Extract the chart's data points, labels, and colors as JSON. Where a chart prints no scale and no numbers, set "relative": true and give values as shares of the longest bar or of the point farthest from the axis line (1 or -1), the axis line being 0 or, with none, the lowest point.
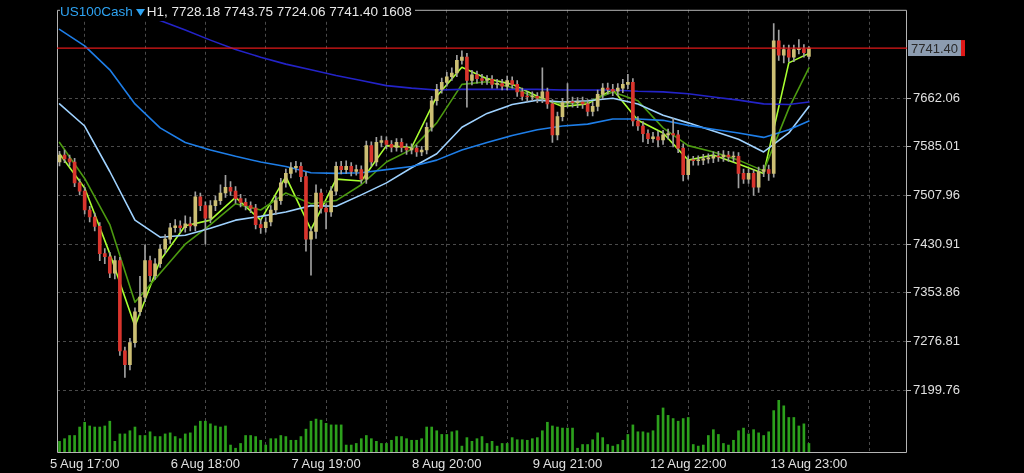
{
  "chart_data": [
    {
      "type": "candlestick",
      "title": "US100Cash",
      "subtitle": "H1, 7728.18 7743.75 7724.06 7741.40 1608",
      "tick_labels": "y",
      "categories": [
        null,
        null,
        null,
        null,
        null,
        null,
        null,
        null,
        null,
        null,
        null,
        null,
        null,
        null,
        null,
        null,
        null,
        null,
        null,
        null,
        null,
        null,
        null,
        null,
        null,
        null,
        null,
        null,
        null,
        null,
        null,
        null,
        null,
        null,
        null,
        null,
        null,
        null,
        null,
        null,
        null,
        null,
        null,
        null,
        null,
        null,
        null,
        null,
        null,
        null,
        null,
        null,
        null,
        null,
        null,
        null,
        null,
        null,
        null,
        null,
        null,
        null,
        null,
        null,
        null,
        null,
        null,
        null,
        null,
        null,
        null,
        null,
        null,
        null,
        null,
        null,
        null,
        null,
        null,
        null,
        null,
        null,
        null,
        null,
        null,
        null,
        null,
        null,
        null,
        null,
        null,
        null,
        null,
        null,
        null,
        null,
        null,
        null,
        null,
        null,
        null,
        null,
        null,
        null,
        null,
        null,
        null,
        null,
        null,
        null,
        null,
        null,
        null,
        null,
        null,
        null,
        null,
        null,
        null,
        null,
        null,
        null,
        null,
        null,
        null,
        null,
        null,
        null,
        null,
        null,
        null,
        null,
        null,
        null,
        null,
        null,
        null,
        null,
        null,
        null,
        null,
        null,
        null,
        null,
        null,
        null,
        null,
        null,
        null,
        null,
        null,
        null,
        null,
        null,
        null,
        null,
        null,
        null,
        null,
        null,
        null,
        null,
        null,
        null,
        null,
        null,
        null,
        null,
        null
      ],
      "ohlc": [
        [
          7561,
          7578,
          7555,
          7572
        ],
        [
          7572,
          7580,
          7560,
          7566
        ],
        [
          7566,
          7572,
          7555,
          7561
        ],
        [
          7561,
          7567,
          7522,
          7528
        ],
        [
          7528,
          7534,
          7509,
          7515
        ],
        [
          7515,
          7521,
          7479,
          7485
        ],
        [
          7485,
          7491,
          7466,
          7474
        ],
        [
          7474,
          7480,
          7452,
          7459
        ],
        [
          7459,
          7465,
          7405,
          7416
        ],
        [
          7416,
          7424,
          7400,
          7411
        ],
        [
          7411,
          7418,
          7378,
          7385
        ],
        [
          7385,
          7412,
          7376,
          7405
        ],
        [
          7405,
          7410,
          7255,
          7262
        ],
        [
          7262,
          7268,
          7220,
          7240
        ],
        [
          7240,
          7282,
          7232,
          7275
        ],
        [
          7275,
          7330,
          7268,
          7324
        ],
        [
          7324,
          7380,
          7318,
          7347
        ],
        [
          7347,
          7430,
          7340,
          7405
        ],
        [
          7405,
          7412,
          7372,
          7381
        ],
        [
          7381,
          7408,
          7375,
          7400
        ],
        [
          7400,
          7430,
          7394,
          7423
        ],
        [
          7423,
          7446,
          7416,
          7439
        ],
        [
          7439,
          7464,
          7432,
          7457
        ],
        [
          7457,
          7470,
          7450,
          7460
        ],
        [
          7460,
          7468,
          7450,
          7457
        ],
        [
          7457,
          7476,
          7450,
          7463
        ],
        [
          7463,
          7474,
          7452,
          7460
        ],
        [
          7460,
          7514,
          7452,
          7506
        ],
        [
          7506,
          7512,
          7484,
          7492
        ],
        [
          7492,
          7498,
          7431,
          7472
        ],
        [
          7472,
          7500,
          7465,
          7492
        ],
        [
          7492,
          7507,
          7484,
          7500
        ],
        [
          7500,
          7525,
          7494,
          7512
        ],
        [
          7512,
          7540,
          7505,
          7521
        ],
        [
          7521,
          7530,
          7508,
          7515
        ],
        [
          7515,
          7522,
          7496,
          7503
        ],
        [
          7503,
          7510,
          7490,
          7497
        ],
        [
          7497,
          7503,
          7485,
          7492
        ],
        [
          7492,
          7498,
          7481,
          7488
        ],
        [
          7488,
          7494,
          7455,
          7462
        ],
        [
          7462,
          7470,
          7448,
          7457
        ],
        [
          7457,
          7473,
          7450,
          7466
        ],
        [
          7466,
          7492,
          7460,
          7485
        ],
        [
          7485,
          7507,
          7478,
          7500
        ],
        [
          7500,
          7535,
          7494,
          7528
        ],
        [
          7528,
          7550,
          7521,
          7543
        ],
        [
          7543,
          7560,
          7536,
          7552
        ],
        [
          7552,
          7562,
          7545,
          7554
        ],
        [
          7554,
          7560,
          7530,
          7538
        ],
        [
          7538,
          7545,
          7420,
          7439
        ],
        [
          7439,
          7458,
          7382,
          7451
        ],
        [
          7451,
          7525,
          7440,
          7512
        ],
        [
          7512,
          7518,
          7480,
          7488
        ],
        [
          7488,
          7495,
          7455,
          7482
        ],
        [
          7482,
          7522,
          7475,
          7515
        ],
        [
          7515,
          7561,
          7509,
          7554
        ],
        [
          7554,
          7562,
          7542,
          7549
        ],
        [
          7549,
          7563,
          7543,
          7554
        ],
        [
          7554,
          7560,
          7539,
          7546
        ],
        [
          7546,
          7556,
          7540,
          7549
        ],
        [
          7549,
          7555,
          7527,
          7534
        ],
        [
          7534,
          7594,
          7527,
          7587
        ],
        [
          7587,
          7593,
          7554,
          7561
        ],
        [
          7561,
          7600,
          7555,
          7592
        ],
        [
          7592,
          7602,
          7585,
          7595
        ],
        [
          7595,
          7601,
          7582,
          7589
        ],
        [
          7589,
          7595,
          7577,
          7584
        ],
        [
          7584,
          7598,
          7578,
          7592
        ],
        [
          7592,
          7598,
          7577,
          7584
        ],
        [
          7584,
          7590,
          7573,
          7580
        ],
        [
          7580,
          7590,
          7574,
          7583
        ],
        [
          7583,
          7588,
          7570,
          7577
        ],
        [
          7577,
          7586,
          7571,
          7580
        ],
        [
          7580,
          7623,
          7574,
          7616
        ],
        [
          7616,
          7665,
          7610,
          7658
        ],
        [
          7658,
          7684,
          7651,
          7676
        ],
        [
          7676,
          7694,
          7670,
          7687
        ],
        [
          7687,
          7703,
          7681,
          7696
        ],
        [
          7696,
          7710,
          7690,
          7702
        ],
        [
          7702,
          7730,
          7696,
          7722
        ],
        [
          7722,
          7737,
          7716,
          7727
        ],
        [
          7727,
          7733,
          7648,
          7690
        ],
        [
          7690,
          7706,
          7683,
          7699
        ],
        [
          7699,
          7705,
          7686,
          7693
        ],
        [
          7693,
          7700,
          7684,
          7690
        ],
        [
          7690,
          7698,
          7684,
          7692
        ],
        [
          7692,
          7698,
          7678,
          7684
        ],
        [
          7684,
          7692,
          7678,
          7685
        ],
        [
          7685,
          7692,
          7675,
          7681
        ],
        [
          7681,
          7697,
          7675,
          7690
        ],
        [
          7690,
          7696,
          7678,
          7684
        ],
        [
          7684,
          7690,
          7665,
          7672
        ],
        [
          7672,
          7678,
          7659,
          7665
        ],
        [
          7665,
          7672,
          7657,
          7664
        ],
        [
          7664,
          7672,
          7658,
          7665
        ],
        [
          7665,
          7671,
          7655,
          7662
        ],
        [
          7662,
          7710,
          7655,
          7672
        ],
        [
          7672,
          7678,
          7646,
          7653
        ],
        [
          7653,
          7660,
          7592,
          7604
        ],
        [
          7604,
          7640,
          7596,
          7633
        ],
        [
          7633,
          7662,
          7626,
          7655
        ],
        [
          7655,
          7685,
          7648,
          7656
        ],
        [
          7656,
          7664,
          7648,
          7655
        ],
        [
          7655,
          7663,
          7647,
          7656
        ],
        [
          7656,
          7664,
          7646,
          7653
        ],
        [
          7653,
          7660,
          7634,
          7641
        ],
        [
          7641,
          7656,
          7634,
          7649
        ],
        [
          7649,
          7675,
          7642,
          7668
        ],
        [
          7668,
          7685,
          7661,
          7678
        ],
        [
          7678,
          7686,
          7669,
          7676
        ],
        [
          7676,
          7684,
          7666,
          7673
        ],
        [
          7673,
          7685,
          7666,
          7678
        ],
        [
          7678,
          7692,
          7671,
          7684
        ],
        [
          7684,
          7700,
          7677,
          7687
        ],
        [
          7687,
          7693,
          7618,
          7626
        ],
        [
          7626,
          7633,
          7611,
          7618
        ],
        [
          7618,
          7625,
          7593,
          7606
        ],
        [
          7606,
          7612,
          7590,
          7598
        ],
        [
          7598,
          7608,
          7592,
          7601
        ],
        [
          7601,
          7610,
          7585,
          7596
        ],
        [
          7596,
          7611,
          7589,
          7604
        ],
        [
          7604,
          7613,
          7597,
          7606
        ],
        [
          7606,
          7630,
          7585,
          7604
        ],
        [
          7604,
          7611,
          7576,
          7583
        ],
        [
          7583,
          7590,
          7531,
          7541
        ],
        [
          7541,
          7571,
          7534,
          7564
        ],
        [
          7564,
          7570,
          7556,
          7563
        ],
        [
          7563,
          7571,
          7556,
          7564
        ],
        [
          7564,
          7573,
          7557,
          7566
        ],
        [
          7566,
          7574,
          7559,
          7567
        ],
        [
          7567,
          7577,
          7560,
          7570
        ],
        [
          7570,
          7578,
          7562,
          7569
        ],
        [
          7569,
          7579,
          7562,
          7572
        ],
        [
          7572,
          7578,
          7562,
          7569
        ],
        [
          7569,
          7577,
          7561,
          7570
        ],
        [
          7570,
          7576,
          7520,
          7543
        ],
        [
          7543,
          7550,
          7527,
          7534
        ],
        [
          7534,
          7550,
          7527,
          7543
        ],
        [
          7543,
          7549,
          7508,
          7521
        ],
        [
          7521,
          7553,
          7513,
          7546
        ],
        [
          7546,
          7556,
          7538,
          7549
        ],
        [
          7549,
          7556,
          7532,
          7543
        ],
        [
          7543,
          7780,
          7537,
          7753
        ],
        [
          7753,
          7770,
          7722,
          7730
        ],
        [
          7730,
          7746,
          7718,
          7739
        ],
        [
          7739,
          7746,
          7720,
          7727
        ],
        [
          7727,
          7746,
          7720,
          7739
        ],
        [
          7739,
          7755,
          7732,
          7740
        ],
        [
          7740,
          7747,
          7727,
          7734
        ],
        [
          7728.18,
          7743.75,
          7724.06,
          7741.4
        ],
        null,
        null,
        null,
        null,
        null,
        null,
        null,
        null,
        null,
        null,
        null,
        null,
        null,
        null,
        null,
        null,
        null,
        null,
        null
      ],
      "color": "#a0a0a0",
      "colors": [
        "#cdbf74",
        "#d9352d",
        "#d9352d",
        "#d9352d",
        "#d9352d",
        "#d9352d",
        "#d9352d",
        "#d9352d",
        "#d9352d",
        "#d9352d",
        "#d9352d",
        "#cdbf74",
        "#d9352d",
        "#d9352d",
        "#cdbf74",
        "#cdbf74",
        "#cdbf74",
        "#cdbf74",
        "#d9352d",
        "#cdbf74",
        "#cdbf74",
        "#cdbf74",
        "#cdbf74",
        "#cdbf74",
        "#d9352d",
        "#cdbf74",
        "#d9352d",
        "#cdbf74",
        "#d9352d",
        "#d9352d",
        "#cdbf74",
        "#cdbf74",
        "#cdbf74",
        "#cdbf74",
        "#d9352d",
        "#d9352d",
        "#d9352d",
        "#d9352d",
        "#d9352d",
        "#d9352d",
        "#d9352d",
        "#cdbf74",
        "#cdbf74",
        "#cdbf74",
        "#cdbf74",
        "#cdbf74",
        "#cdbf74",
        "#cdbf74",
        "#d9352d",
        "#d9352d",
        "#cdbf74",
        "#cdbf74",
        "#d9352d",
        "#d9352d",
        "#cdbf74",
        "#cdbf74",
        "#d9352d",
        "#cdbf74",
        "#d9352d",
        "#cdbf74",
        "#d9352d",
        "#cdbf74",
        "#d9352d",
        "#cdbf74",
        "#cdbf74",
        "#d9352d",
        "#d9352d",
        "#cdbf74",
        "#d9352d",
        "#d9352d",
        "#cdbf74",
        "#d9352d",
        "#cdbf74",
        "#cdbf74",
        "#cdbf74",
        "#cdbf74",
        "#cdbf74",
        "#cdbf74",
        "#cdbf74",
        "#cdbf74",
        "#cdbf74",
        "#d9352d",
        "#cdbf74",
        "#d9352d",
        "#d9352d",
        "#cdbf74",
        "#d9352d",
        "#cdbf74",
        "#d9352d",
        "#cdbf74",
        "#d9352d",
        "#d9352d",
        "#d9352d",
        "#d9352d",
        "#cdbf74",
        "#d9352d",
        "#cdbf74",
        "#d9352d",
        "#d9352d",
        "#cdbf74",
        "#cdbf74",
        "#cdbf74",
        "#d9352d",
        "#cdbf74",
        "#d9352d",
        "#d9352d",
        "#cdbf74",
        "#cdbf74",
        "#cdbf74",
        "#d9352d",
        "#d9352d",
        "#cdbf74",
        "#cdbf74",
        "#cdbf74",
        "#d9352d",
        "#d9352d",
        "#d9352d",
        "#d9352d",
        "#cdbf74",
        "#d9352d",
        "#cdbf74",
        "#cdbf74",
        "#d9352d",
        "#d9352d",
        "#d9352d",
        "#cdbf74",
        "#d9352d",
        "#cdbf74",
        "#cdbf74",
        "#cdbf74",
        "#cdbf74",
        "#d9352d",
        "#cdbf74",
        "#d9352d",
        "#cdbf74",
        "#d9352d",
        "#d9352d",
        "#cdbf74",
        "#d9352d",
        "#cdbf74",
        "#cdbf74",
        "#d9352d",
        "#cdbf74",
        "#d9352d",
        "#cdbf74",
        "#d9352d",
        "#cdbf74",
        "#cdbf74",
        "#d9352d",
        "#cdbf74",
        null,
        null,
        null,
        null,
        null,
        null,
        null,
        null,
        null,
        null,
        null,
        null,
        null,
        null,
        null,
        null,
        null,
        null,
        null
      ],
      "series": [
        {
          "type": "line",
          "color": "#2323c8",
          "values": [
            null,
            null,
            null,
            null,
            null,
            null,
            null,
            null,
            null,
            null,
            null,
            null,
            null,
            null,
            null,
            null,
            null,
            null,
            null,
            null,
            7785,
            null,
            null,
            null,
            null,
            7770,
            null,
            null,
            null,
            null,
            7754,
            null,
            null,
            null,
            null,
            7739,
            null,
            null,
            null,
            null,
            7727,
            null,
            null,
            null,
            null,
            7716,
            null,
            null,
            null,
            null,
            7707,
            null,
            null,
            null,
            null,
            7698,
            null,
            null,
            null,
            null,
            7690,
            null,
            null,
            null,
            null,
            7682,
            null,
            null,
            null,
            null,
            7678,
            null,
            null,
            null,
            null,
            7675,
            null,
            null,
            null,
            null,
            7676,
            null,
            null,
            null,
            null,
            7676,
            null,
            null,
            null,
            null,
            7676,
            null,
            null,
            null,
            null,
            7676,
            null,
            null,
            null,
            null,
            7675,
            null,
            null,
            null,
            null,
            7675,
            null,
            null,
            null,
            null,
            7675,
            null,
            null,
            null,
            null,
            7673,
            null,
            null,
            null,
            null,
            7672,
            null,
            null,
            null,
            null,
            7669,
            null,
            null,
            null,
            null,
            7664,
            null,
            null,
            null,
            null,
            7659,
            null,
            null,
            null,
            null,
            7653,
            null,
            null,
            null,
            null,
            7652,
            null,
            null,
            null,
            7656,
            null,
            null,
            null,
            null,
            null,
            null,
            null,
            null,
            null,
            null,
            null,
            null,
            null,
            null,
            null,
            null,
            null,
            null,
            null
          ]
        },
        {
          "type": "line",
          "color": "#1e7ee8",
          "values": [
            7771,
            null,
            null,
            null,
            null,
            7745,
            null,
            null,
            null,
            null,
            7707,
            null,
            null,
            null,
            null,
            7653,
            null,
            null,
            null,
            null,
            7615,
            null,
            null,
            null,
            null,
            7592,
            null,
            null,
            null,
            null,
            7580,
            null,
            null,
            null,
            null,
            7570,
            null,
            null,
            null,
            null,
            7561,
            null,
            null,
            null,
            null,
            7554,
            null,
            null,
            null,
            null,
            7544,
            null,
            null,
            null,
            null,
            7543,
            null,
            null,
            null,
            null,
            7544,
            null,
            null,
            null,
            null,
            7549,
            null,
            null,
            null,
            null,
            7554,
            null,
            null,
            null,
            null,
            7564,
            null,
            null,
            null,
            null,
            7580,
            null,
            null,
            null,
            null,
            7592,
            null,
            null,
            null,
            null,
            7603,
            null,
            null,
            null,
            null,
            7612,
            null,
            null,
            null,
            null,
            7618,
            null,
            null,
            null,
            null,
            7621,
            null,
            null,
            null,
            null,
            7629,
            null,
            null,
            null,
            null,
            7629,
            null,
            null,
            null,
            null,
            7627,
            null,
            null,
            null,
            null,
            7619,
            null,
            null,
            null,
            null,
            7613,
            null,
            null,
            null,
            null,
            7607,
            null,
            null,
            null,
            null,
            7600,
            null,
            null,
            null,
            null,
            7612,
            null,
            null,
            null,
            7626,
            null,
            null,
            null,
            null,
            null,
            null,
            null,
            null,
            null,
            null,
            null,
            null,
            null,
            null,
            null,
            null,
            null,
            null,
            null
          ]
        },
        {
          "type": "line",
          "color": "#9fd2ff",
          "values": [
            7653,
            null,
            null,
            null,
            null,
            7618,
            null,
            null,
            null,
            null,
            7546,
            null,
            null,
            null,
            null,
            7469,
            null,
            null,
            null,
            null,
            7442,
            null,
            null,
            null,
            null,
            7445,
            null,
            null,
            null,
            null,
            7456,
            null,
            null,
            null,
            null,
            7469,
            null,
            null,
            null,
            null,
            7475,
            null,
            null,
            null,
            null,
            7482,
            null,
            null,
            null,
            null,
            7492,
            null,
            null,
            null,
            null,
            7491,
            null,
            null,
            null,
            null,
            7509,
            null,
            null,
            null,
            null,
            7528,
            null,
            null,
            null,
            null,
            7552,
            null,
            null,
            null,
            null,
            7574,
            null,
            null,
            null,
            null,
            7616,
            null,
            null,
            null,
            null,
            7638,
            null,
            null,
            null,
            null,
            7652,
            null,
            null,
            null,
            null,
            7659,
            null,
            null,
            null,
            null,
            7656,
            null,
            null,
            null,
            null,
            7658,
            null,
            null,
            null,
            null,
            7662,
            null,
            null,
            null,
            null,
            7653,
            null,
            null,
            null,
            null,
            7635,
            null,
            null,
            null,
            null,
            7623,
            null,
            null,
            null,
            null,
            7610,
            null,
            null,
            null,
            null,
            7597,
            null,
            null,
            null,
            null,
            7577,
            null,
            null,
            null,
            null,
            7607,
            null,
            null,
            null,
            7649,
            null,
            null,
            null,
            null,
            null,
            null,
            null,
            null,
            null,
            null,
            null,
            null,
            null,
            null,
            null,
            null,
            null,
            null,
            null
          ]
        },
        {
          "type": "line",
          "color": "#4c9a10",
          "values": [
            7592,
            null,
            null,
            null,
            null,
            7535,
            null,
            null,
            null,
            null,
            7462,
            null,
            null,
            null,
            null,
            7339,
            null,
            null,
            null,
            null,
            7385,
            null,
            null,
            null,
            null,
            7431,
            null,
            null,
            null,
            null,
            7462,
            null,
            null,
            null,
            null,
            7495,
            null,
            null,
            null,
            null,
            7485,
            null,
            null,
            null,
            null,
            7512,
            null,
            null,
            null,
            null,
            7495,
            null,
            null,
            null,
            null,
            7500,
            null,
            null,
            null,
            null,
            7525,
            null,
            null,
            null,
            null,
            7561,
            null,
            null,
            null,
            null,
            7581,
            null,
            null,
            null,
            null,
            7623,
            null,
            null,
            null,
            null,
            7684,
            null,
            null,
            null,
            null,
            7688,
            null,
            null,
            null,
            null,
            7679,
            null,
            null,
            null,
            null,
            7662,
            null,
            null,
            null,
            null,
            7653,
            null,
            null,
            null,
            null,
            7656,
            null,
            null,
            null,
            null,
            7672,
            null,
            null,
            null,
            null,
            7658,
            null,
            null,
            null,
            null,
            7615,
            null,
            null,
            null,
            null,
            7587,
            null,
            null,
            null,
            null,
            7577,
            null,
            null,
            null,
            null,
            7564,
            null,
            null,
            null,
            null,
            7547,
            null,
            null,
            null,
            null,
            7646,
            null,
            null,
            null,
            7710,
            null,
            null,
            null,
            null,
            null,
            null,
            null,
            null,
            null,
            null,
            null,
            null,
            null,
            null,
            null,
            null,
            null,
            null,
            null
          ]
        },
        {
          "type": "line",
          "color": "#a8ff30",
          "values": [
            7574,
            null,
            null,
            null,
            null,
            7520,
            null,
            null,
            null,
            null,
            7416,
            null,
            null,
            null,
            null,
            7301,
            null,
            null,
            null,
            null,
            7405,
            null,
            null,
            null,
            null,
            7460,
            null,
            null,
            null,
            null,
            7469,
            null,
            null,
            null,
            null,
            7505,
            null,
            null,
            null,
            null,
            7469,
            null,
            null,
            null,
            null,
            7538,
            null,
            null,
            null,
            null,
            7454,
            null,
            null,
            null,
            null,
            7534,
            null,
            null,
            null,
            null,
            7531,
            null,
            null,
            null,
            null,
            7587,
            null,
            null,
            null,
            null,
            7584,
            null,
            null,
            null,
            null,
            7665,
            null,
            null,
            null,
            null,
            7711,
            null,
            null,
            null,
            null,
            7693,
            null,
            null,
            null,
            null,
            7684,
            null,
            null,
            null,
            null,
            7665,
            null,
            null,
            null,
            null,
            7649,
            null,
            null,
            null,
            null,
            7653,
            null,
            null,
            null,
            null,
            7676,
            null,
            null,
            null,
            null,
            7627,
            null,
            null,
            null,
            null,
            7607,
            null,
            null,
            null,
            null,
            7564,
            null,
            null,
            null,
            null,
            7572,
            null,
            null,
            null,
            null,
            7558,
            null,
            null,
            null,
            null,
            7543,
            null,
            null,
            null,
            null,
            7718,
            null,
            null,
            null,
            7733,
            null,
            null,
            null,
            null,
            null,
            null,
            null,
            null,
            null,
            null,
            null,
            null,
            null,
            null,
            null,
            null,
            null,
            null,
            null
          ]
        }
      ],
      "ylim": [
        7199.76,
        7802
      ],
      "yticks": [
        7199.76,
        7276.81,
        7353.86,
        7430.91,
        7507.96,
        7585.01,
        7662.06
      ],
      "ref_lines": [
        {
          "axis": "y",
          "value": 7741.4,
          "label": "7741.40",
          "color": "#e01818"
        }
      ],
      "grid": true
    },
    {
      "type": "bar",
      "relative": true,
      "tick_labels": "x",
      "grid": "x",
      "color": "#2ca01c",
      "categories": [
        null,
        null,
        null,
        null,
        null,
        "5 Aug 17:00",
        null,
        null,
        null,
        null,
        null,
        null,
        null,
        null,
        null,
        null,
        null,
        null,
        null,
        null,
        null,
        null,
        null,
        null,
        null,
        null,
        null,
        null,
        null,
        "6 Aug 18:00",
        null,
        null,
        null,
        null,
        null,
        null,
        null,
        null,
        null,
        null,
        null,
        null,
        null,
        null,
        null,
        null,
        null,
        null,
        null,
        null,
        null,
        null,
        null,
        "7 Aug 19:00",
        null,
        null,
        null,
        null,
        null,
        null,
        null,
        null,
        null,
        null,
        null,
        null,
        null,
        null,
        null,
        null,
        null,
        null,
        null,
        null,
        null,
        null,
        null,
        "8 Aug 20:00",
        null,
        null,
        null,
        null,
        null,
        null,
        null,
        null,
        null,
        null,
        null,
        null,
        null,
        null,
        null,
        null,
        null,
        null,
        null,
        null,
        null,
        null,
        null,
        "9 Aug 21:00",
        null,
        null,
        null,
        null,
        null,
        null,
        null,
        null,
        null,
        null,
        null,
        null,
        null,
        null,
        null,
        null,
        null,
        null,
        null,
        null,
        null,
        null,
        null,
        "12 Aug 22:00",
        null,
        null,
        null,
        null,
        null,
        null,
        null,
        null,
        null,
        null,
        null,
        null,
        null,
        null,
        null,
        null,
        null,
        null,
        null,
        null,
        null,
        null,
        null,
        "13 Aug 23:00",
        null,
        null,
        null,
        null,
        null,
        null,
        null,
        null,
        null,
        null,
        null,
        null,
        null,
        null,
        null,
        null,
        null,
        null,
        null
      ],
      "values": [
        0.22,
        0.27,
        0.33,
        0.33,
        0.49,
        0.58,
        0.51,
        0.49,
        0.49,
        0.51,
        0.6,
        0.22,
        0.36,
        0.36,
        0.42,
        0.49,
        0.33,
        0.33,
        0.4,
        0.31,
        0.31,
        0.36,
        0.38,
        0.31,
        0.27,
        0.36,
        0.38,
        0.51,
        0.6,
        0.6,
        0.55,
        0.51,
        0.49,
        0.51,
        0.15,
        0.09,
        0.18,
        0.33,
        0.33,
        0.31,
        0.24,
        0.15,
        0.27,
        0.27,
        0.33,
        0.31,
        0.24,
        0.24,
        0.31,
        0.45,
        0.6,
        0.64,
        0.62,
        0.56,
        0.53,
        0.53,
        0.53,
        0.15,
        0.15,
        0.18,
        0.27,
        0.33,
        0.27,
        0.22,
        0.18,
        0.18,
        0.24,
        0.31,
        0.31,
        0.27,
        0.24,
        0.24,
        0.27,
        0.49,
        0.49,
        0.42,
        0.35,
        0.35,
        0.4,
        0.42,
        0.13,
        0.29,
        0.22,
        0.27,
        0.31,
        0.18,
        0.22,
        0.13,
        0.18,
        0.18,
        0.29,
        0.25,
        0.25,
        0.24,
        0.27,
        0.29,
        0.42,
        0.58,
        0.51,
        0.49,
        0.47,
        0.47,
        0.47,
        0.09,
        0.16,
        0.16,
        0.25,
        0.38,
        0.29,
        0.16,
        0.13,
        0.16,
        0.24,
        0.35,
        0.53,
        0.4,
        0.4,
        0.38,
        0.42,
        0.71,
        0.85,
        0.71,
        0.65,
        0.6,
        0.65,
        0.67,
        0.16,
        0.13,
        0.15,
        0.33,
        0.44,
        0.35,
        0.18,
        0.15,
        0.24,
        0.42,
        0.47,
        0.36,
        0.44,
        0.38,
        0.33,
        0.4,
        0.8,
        1,
        0.89,
        0.67,
        0.67,
        0.51,
        0.55,
        0.18,
        null,
        null,
        null,
        null,
        null,
        null,
        null,
        null,
        null,
        null,
        null,
        null,
        null,
        null,
        null,
        null,
        null,
        null,
        null
      ]
    }
  ]
}
